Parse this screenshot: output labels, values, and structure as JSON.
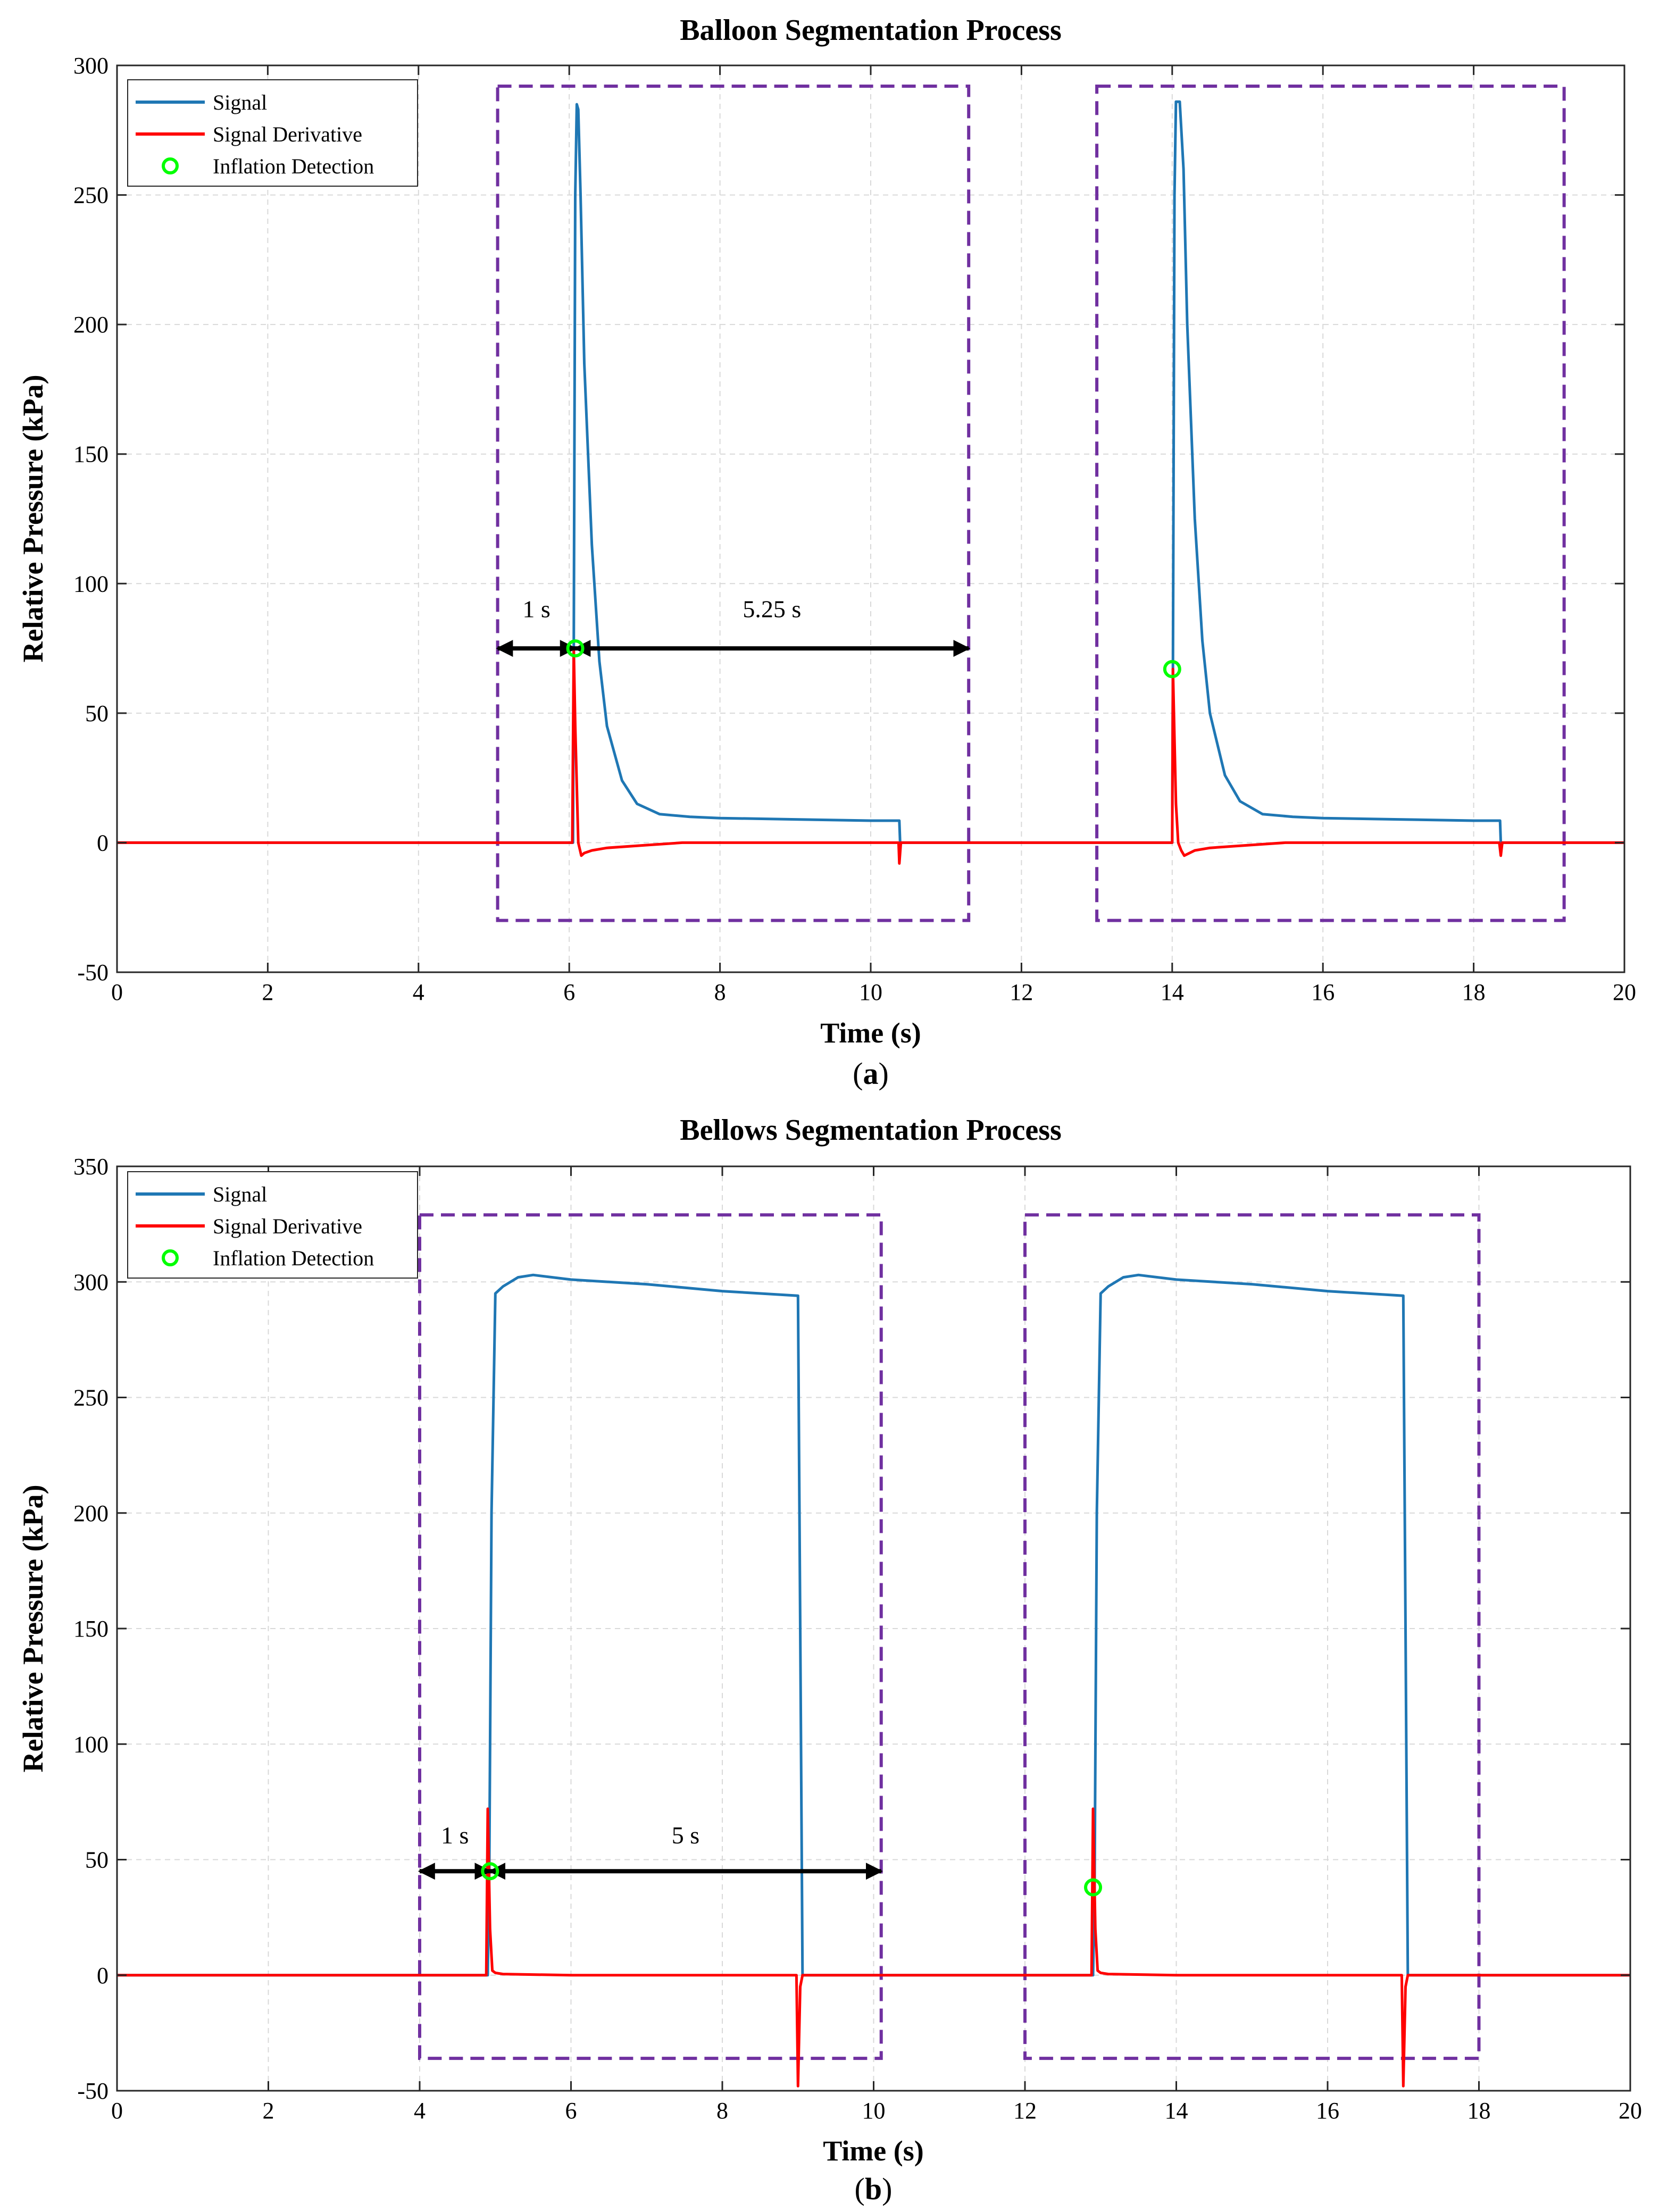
{
  "colors": {
    "signal": "#1f77b4",
    "derivative": "#ff0000",
    "detection": "#00ff00",
    "box": "#7030a0",
    "arrow": "#000000",
    "grid": "#d9d9d9"
  },
  "chart_data": [
    {
      "type": "line",
      "title": "Balloon Segmentation Process",
      "xlabel": "Time (s)",
      "ylabel": "Relative Pressure (kPa)",
      "panel_label": "(a)",
      "panel_letter": "a",
      "xlim": [
        0,
        20
      ],
      "ylim": [
        -50,
        300
      ],
      "xticks": [
        0,
        2,
        4,
        6,
        8,
        10,
        12,
        14,
        16,
        18,
        20
      ],
      "yticks": [
        -50,
        0,
        50,
        100,
        150,
        200,
        250,
        300
      ],
      "grid": true,
      "legend": {
        "location": "top-left",
        "entries": [
          {
            "label": "Signal",
            "kind": "line",
            "color": "#1f77b4"
          },
          {
            "label": "Signal Derivative",
            "kind": "line",
            "color": "#ff0000"
          },
          {
            "label": "Inflation Detection",
            "kind": "marker",
            "color": "#00ff00"
          }
        ]
      },
      "series": [
        {
          "name": "Signal",
          "color": "#1f77b4",
          "x": [
            0,
            6.05,
            6.06,
            6.08,
            6.1,
            6.12,
            6.15,
            6.2,
            6.3,
            6.4,
            6.5,
            6.7,
            6.9,
            7.2,
            7.6,
            8,
            9,
            10,
            10.38,
            10.39,
            10.4,
            12,
            14,
            14.01,
            14.03,
            14.05,
            14.1,
            14.15,
            14.2,
            14.3,
            14.4,
            14.5,
            14.7,
            14.9,
            15.2,
            15.6,
            16,
            17,
            18,
            18.35,
            18.36,
            18.4,
            20
          ],
          "y": [
            0,
            0,
            75,
            250,
            285,
            283,
            250,
            185,
            115,
            70,
            45,
            24,
            15,
            11,
            10,
            9.5,
            9,
            8.5,
            8.5,
            0,
            0,
            0,
            0,
            67,
            250,
            286,
            286,
            260,
            200,
            125,
            78,
            50,
            26,
            16,
            11,
            10,
            9.5,
            9,
            8.5,
            8.5,
            0,
            0,
            0
          ]
        },
        {
          "name": "Signal Derivative",
          "color": "#ff0000",
          "x": [
            0,
            6.04,
            6.06,
            6.08,
            6.12,
            6.16,
            6.2,
            6.3,
            6.5,
            7,
            7.5,
            8,
            9,
            10,
            10.37,
            10.38,
            10.4,
            10.42,
            12,
            14,
            14.01,
            14.03,
            14.05,
            14.08,
            14.12,
            14.16,
            14.3,
            14.5,
            15,
            15.5,
            16,
            17,
            18,
            18.34,
            18.36,
            18.38,
            18.4,
            20
          ],
          "y": [
            0,
            0,
            75,
            45,
            0,
            -5,
            -4,
            -3,
            -2,
            -1,
            0,
            0,
            0,
            0,
            0,
            -8,
            0,
            0,
            0,
            0,
            67,
            40,
            15,
            0,
            -3,
            -5,
            -3,
            -2,
            -1,
            0,
            0,
            0,
            0,
            0,
            -5,
            0,
            0,
            0
          ]
        }
      ],
      "detections": [
        {
          "x": 6.08,
          "y": 75
        },
        {
          "x": 14.0,
          "y": 67
        }
      ],
      "segment_boxes": [
        {
          "x0": 5.05,
          "x1": 11.3,
          "y0": -30,
          "y1": 292
        },
        {
          "x0": 13.0,
          "x1": 19.2,
          "y0": -30,
          "y1": 292
        }
      ],
      "annotations": [
        {
          "text": "1 s",
          "x0": 5.05,
          "x1": 6.08,
          "y": 75,
          "label_y": 87
        },
        {
          "text": "5.25 s",
          "x0": 6.08,
          "x1": 11.3,
          "y": 75,
          "label_y": 87
        }
      ]
    },
    {
      "type": "line",
      "title": "Bellows Segmentation Process",
      "xlabel": "Time (s)",
      "ylabel": "Relative Pressure (kPa)",
      "panel_label": "(b)",
      "panel_letter": "b",
      "xlim": [
        0,
        20
      ],
      "ylim": [
        -50,
        350
      ],
      "xticks": [
        0,
        2,
        4,
        6,
        8,
        10,
        12,
        14,
        16,
        18,
        20
      ],
      "yticks": [
        -50,
        0,
        50,
        100,
        150,
        200,
        250,
        300,
        350
      ],
      "grid": true,
      "legend": {
        "location": "top-left",
        "entries": [
          {
            "label": "Signal",
            "kind": "line",
            "color": "#1f77b4"
          },
          {
            "label": "Signal Derivative",
            "kind": "line",
            "color": "#ff0000"
          },
          {
            "label": "Inflation Detection",
            "kind": "marker",
            "color": "#00ff00"
          }
        ]
      },
      "series": [
        {
          "name": "Signal",
          "color": "#1f77b4",
          "x": [
            0,
            4.9,
            4.92,
            4.95,
            5.0,
            5.1,
            5.3,
            5.5,
            6,
            7,
            8,
            9.0,
            9.03,
            9.06,
            12,
            12.9,
            12.92,
            12.95,
            13.0,
            13.1,
            13.3,
            13.5,
            14,
            15,
            16,
            17.0,
            17.03,
            17.06,
            20
          ],
          "y": [
            0,
            0,
            45,
            200,
            295,
            298,
            302,
            303,
            301,
            299,
            296,
            294,
            150,
            0,
            0,
            0,
            38,
            200,
            295,
            298,
            302,
            303,
            301,
            299,
            296,
            294,
            150,
            0,
            0
          ]
        },
        {
          "name": "Signal Derivative",
          "color": "#ff0000",
          "x": [
            0,
            4.88,
            4.9,
            4.93,
            4.96,
            5.0,
            5.1,
            6,
            7,
            8,
            8.98,
            9.0,
            9.03,
            9.06,
            12,
            12.88,
            12.9,
            12.93,
            12.96,
            13.0,
            13.1,
            14,
            15,
            16,
            16.98,
            17.0,
            17.03,
            17.06,
            20
          ],
          "y": [
            0,
            0,
            72,
            20,
            2,
            1,
            0.5,
            0,
            0,
            0,
            0,
            -48,
            -5,
            0,
            0,
            0,
            72,
            20,
            2,
            1,
            0.5,
            0,
            0,
            0,
            0,
            -48,
            -5,
            0,
            0
          ]
        }
      ],
      "detections": [
        {
          "x": 4.93,
          "y": 45
        },
        {
          "x": 12.9,
          "y": 38
        }
      ],
      "segment_boxes": [
        {
          "x0": 4.0,
          "x1": 10.1,
          "y0": -36,
          "y1": 329
        },
        {
          "x0": 12.0,
          "x1": 18.0,
          "y0": -36,
          "y1": 329
        }
      ],
      "annotations": [
        {
          "text": "1 s",
          "x0": 4.0,
          "x1": 4.93,
          "y": 45,
          "label_y": 57
        },
        {
          "text": "5 s",
          "x0": 4.93,
          "x1": 10.1,
          "y": 45,
          "label_y": 57
        }
      ]
    }
  ]
}
